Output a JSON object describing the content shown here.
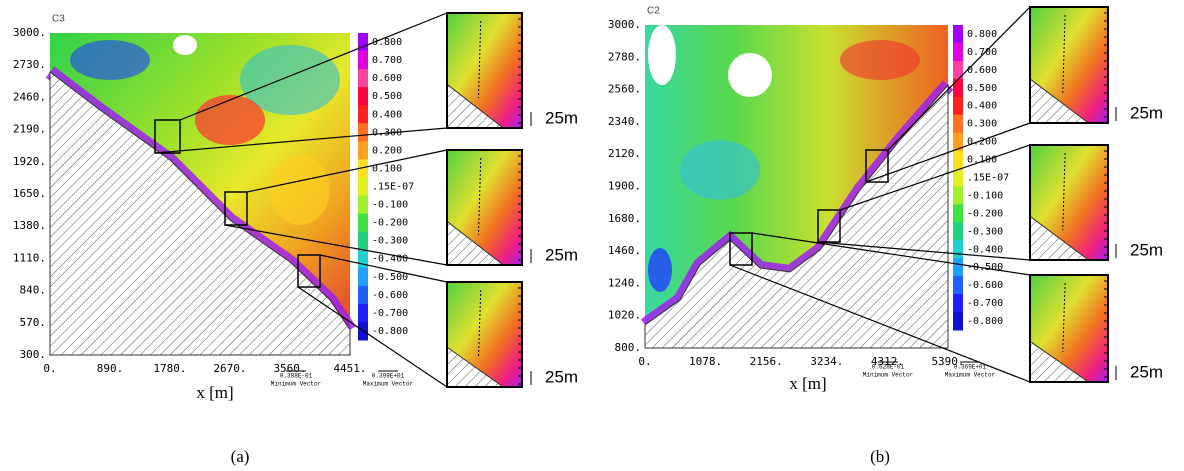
{
  "panels": [
    {
      "label": "C3",
      "yticks": [
        "3000.",
        "2730.",
        "2460.",
        "2190.",
        "1920.",
        "1650.",
        "1380.",
        "1110.",
        "840.",
        "570.",
        "300."
      ],
      "xticks": [
        "0.",
        "890.",
        "1780.",
        "2670.",
        "3560.",
        "4451."
      ],
      "xlabel": "x [m]",
      "colorbar": [
        "0.800",
        "0.700",
        "0.600",
        "0.500",
        "0.400",
        "0.300",
        "0.200",
        "0.100",
        ".15E-07",
        "-0.100",
        "-0.200",
        "-0.300",
        "-0.400",
        "-0.500",
        "-0.600",
        "-0.700",
        "-0.800"
      ],
      "min_vector": "0.388E-01",
      "min_vector_label": "Minimum Vector",
      "max_vector": "0.399E+01",
      "max_vector_label": "Maximum Vector",
      "insets": [
        "25m",
        "25m",
        "25m"
      ],
      "caption": "(a)"
    },
    {
      "label": "C2",
      "yticks": [
        "3000.",
        "2780.",
        "2560.",
        "2340.",
        "2120.",
        "1900.",
        "1680.",
        "1460.",
        "1240.",
        "1020.",
        "800."
      ],
      "xticks": [
        "0.",
        "1078.",
        "2156.",
        "3234.",
        "4312.",
        "5390."
      ],
      "xlabel": "x [m]",
      "colorbar": [
        "0.800",
        "0.700",
        "0.600",
        "0.500",
        "0.400",
        "0.300",
        "0.200",
        "0.100",
        ".15E-07",
        "-0.100",
        "-0.200",
        "-0.300",
        "-0.400",
        "-0.500",
        "-0.600",
        "-0.700",
        "-0.800"
      ],
      "min_vector": "0.628E-01",
      "min_vector_label": "Minimum Vector",
      "max_vector": "0.369E+01",
      "max_vector_label": "Maximum Vector",
      "insets": [
        "25m",
        "25m",
        "25m"
      ],
      "caption": "(b)"
    }
  ]
}
